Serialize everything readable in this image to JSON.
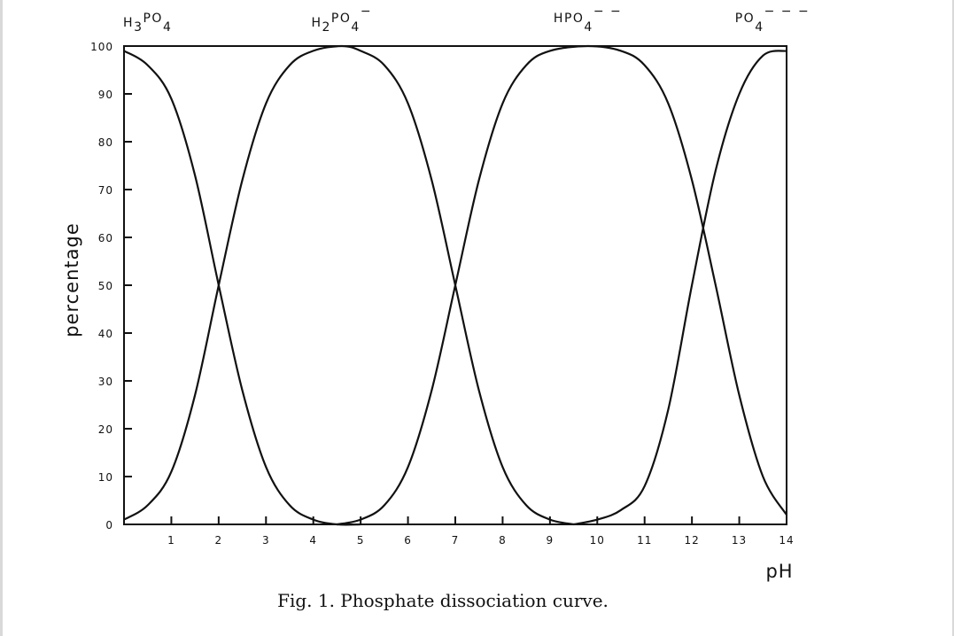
{
  "caption": "Fig. 1.  Phosphate dissociation curve.",
  "chart_data": {
    "type": "line",
    "title": "",
    "xlabel": "pH",
    "ylabel": "percentage",
    "xlim": [
      0,
      14
    ],
    "ylim": [
      0,
      100
    ],
    "x_ticks": [
      0,
      1,
      2,
      3,
      4,
      5,
      6,
      7,
      8,
      9,
      10,
      11,
      12,
      13,
      14
    ],
    "x_tick_labels": [
      "",
      "1",
      "2",
      "3",
      "4",
      "5",
      "6",
      "7",
      "8",
      "9",
      "10",
      "11",
      "12",
      "13",
      "14"
    ],
    "y_ticks": [
      0,
      10,
      20,
      30,
      40,
      50,
      60,
      70,
      80,
      90,
      100
    ],
    "y_tick_labels": [
      "0",
      "10",
      "20",
      "30",
      "40",
      "50",
      "60",
      "70",
      "80",
      "90",
      "100"
    ],
    "grid": false,
    "line_color": "#111111",
    "species_labels": [
      {
        "base": "H",
        "sub1": "3",
        "mid": "PO",
        "sub2": "4",
        "sup": "",
        "x": 0.5
      },
      {
        "base": "H",
        "sub1": "2",
        "mid": "PO",
        "sub2": "4",
        "sup": "−",
        "x": 4.6
      },
      {
        "base": "",
        "sub1": "",
        "mid": "HPO",
        "sub2": "4",
        "sup": "− −",
        "x": 9.8
      },
      {
        "base": "",
        "sub1": "",
        "mid": "PO",
        "sub2": "4",
        "sup": "− − −",
        "x": 13.7
      }
    ],
    "series": [
      {
        "x": [
          0,
          0.5,
          1,
          1.5,
          2,
          2.5,
          3,
          3.5,
          4,
          4.5,
          5
        ],
        "values": [
          99,
          96,
          89,
          73,
          50,
          28,
          12,
          4,
          1,
          0,
          0
        ]
      },
      {
        "x": [
          0,
          0.5,
          1,
          1.5,
          2,
          2.5,
          3,
          3.5,
          4,
          4.6,
          5,
          5.5,
          6,
          6.5,
          7,
          7.5,
          8,
          8.5,
          9,
          9.5
        ],
        "values": [
          1,
          4,
          11,
          27,
          50,
          72,
          88,
          96,
          99,
          100,
          99,
          96,
          88,
          72,
          50,
          28,
          12,
          4,
          1,
          0
        ]
      },
      {
        "x": [
          4.5,
          5,
          5.5,
          6,
          6.5,
          7,
          7.5,
          8,
          8.5,
          9,
          9.8,
          10.5,
          11,
          11.5,
          12,
          12.5,
          13,
          13.5,
          14
        ],
        "values": [
          0,
          1,
          4,
          12,
          28,
          50,
          72,
          88,
          96,
          99,
          100,
          99,
          96,
          88,
          72,
          50,
          27,
          10,
          2
        ]
      },
      {
        "x": [
          9.5,
          10,
          10.5,
          11,
          11.5,
          12,
          12.5,
          13,
          13.5,
          14
        ],
        "values": [
          0,
          1,
          3,
          8,
          24,
          50,
          74,
          90,
          98,
          99
        ]
      }
    ]
  }
}
